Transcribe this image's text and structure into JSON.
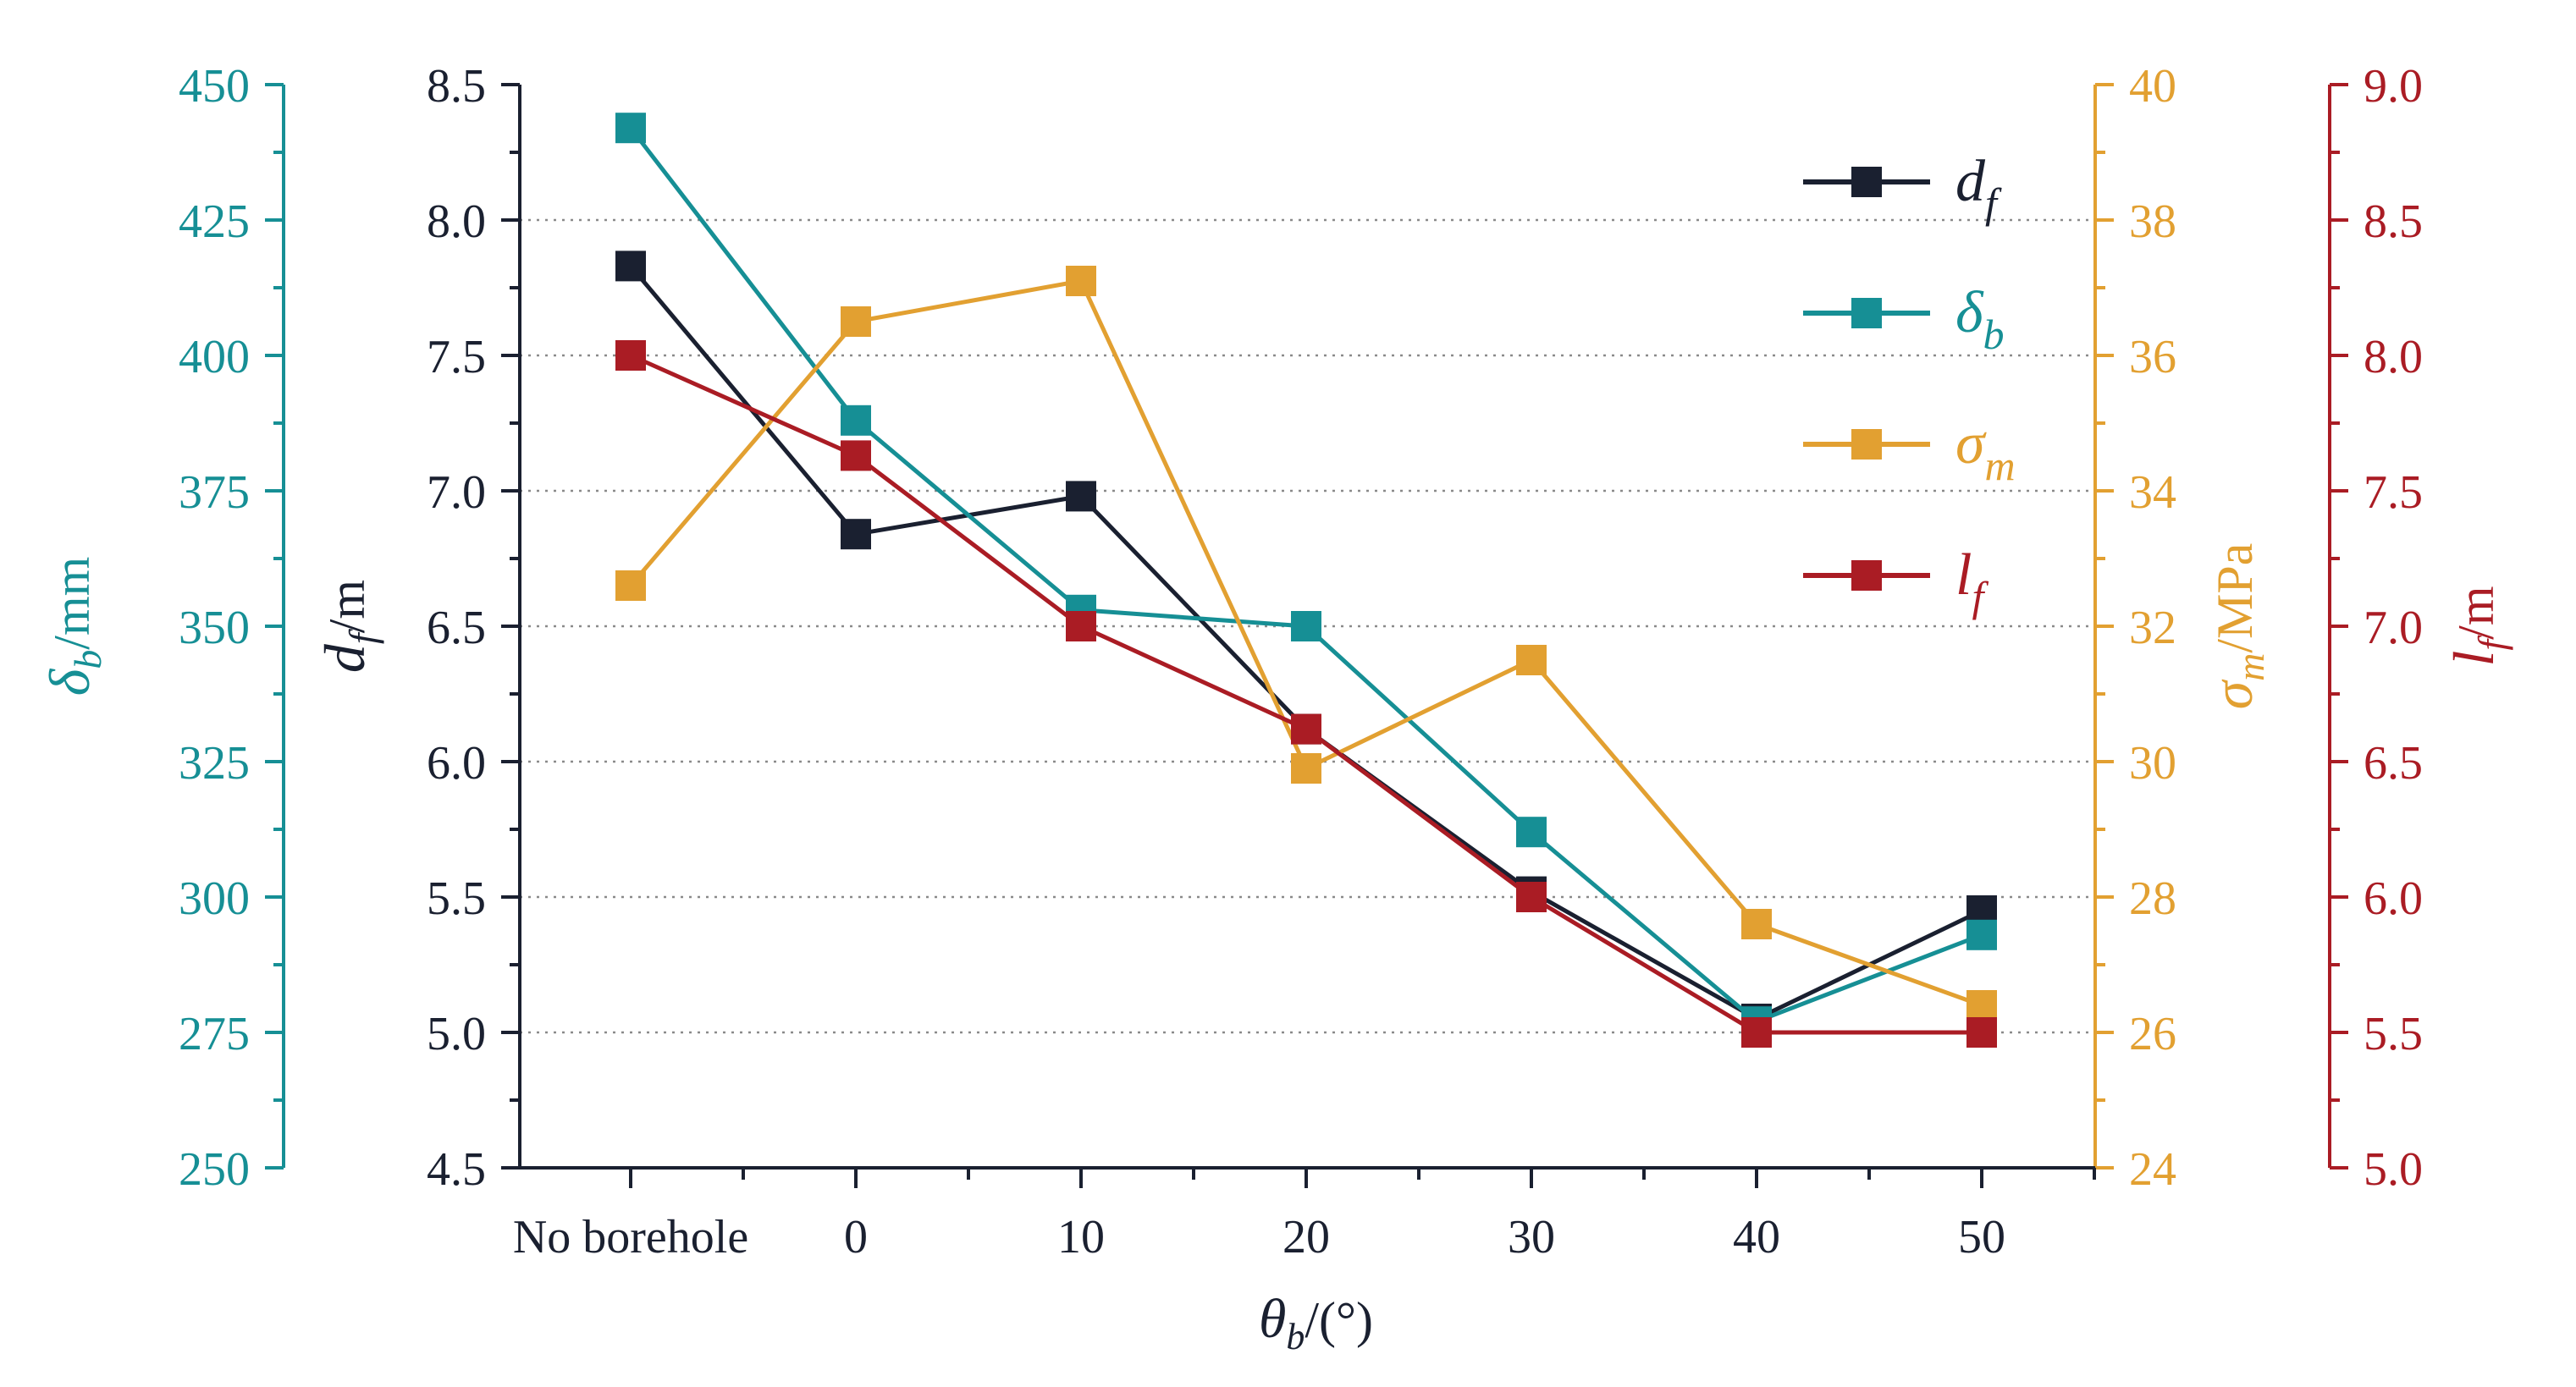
{
  "chart_data": {
    "type": "line",
    "categories": [
      "No borehole",
      "0",
      "10",
      "20",
      "30",
      "40",
      "50"
    ],
    "xlabel": {
      "symbol": "θ",
      "sub": "b",
      "unit": "/(°)"
    },
    "axes": [
      {
        "id": "df",
        "color": "#1a2030",
        "range": [
          4.5,
          8.5
        ],
        "ticks": [
          "4.5",
          "5.0",
          "5.5",
          "6.0",
          "6.5",
          "7.0",
          "7.5",
          "8.0",
          "8.5"
        ],
        "label": {
          "symbol": "d",
          "sub": "f",
          "unit": "/m"
        }
      },
      {
        "id": "db",
        "color": "#168f95",
        "range": [
          250,
          450
        ],
        "ticks": [
          "250",
          "275",
          "300",
          "325",
          "350",
          "375",
          "400",
          "425",
          "450"
        ],
        "label": {
          "symbol": "δ",
          "sub": "b",
          "unit": "/mm"
        }
      },
      {
        "id": "sm",
        "color": "#e2a031",
        "range": [
          24,
          40
        ],
        "ticks": [
          "24",
          "26",
          "28",
          "30",
          "32",
          "34",
          "36",
          "38",
          "40"
        ],
        "label": {
          "symbol": "σ",
          "sub": "m",
          "unit": "/MPa"
        }
      },
      {
        "id": "lf",
        "color": "#aa1c24",
        "range": [
          5.0,
          9.0
        ],
        "ticks": [
          "5.0",
          "5.5",
          "6.0",
          "6.5",
          "7.0",
          "7.5",
          "8.0",
          "8.5",
          "9.0"
        ],
        "label": {
          "symbol": "l",
          "sub": "f",
          "unit": "/m"
        }
      }
    ],
    "series": [
      {
        "name": "d_f",
        "symbol": "d",
        "sub": "f",
        "axis": "df",
        "color": "#1a2030",
        "values": [
          7.83,
          6.84,
          6.98,
          6.12,
          5.52,
          5.05,
          5.45
        ]
      },
      {
        "name": "δ_b",
        "symbol": "δ",
        "sub": "b",
        "axis": "db",
        "color": "#168f95",
        "values": [
          442,
          388,
          353,
          350,
          312,
          277,
          293
        ]
      },
      {
        "name": "σ_m",
        "symbol": "σ",
        "sub": "m",
        "axis": "sm",
        "color": "#e2a031",
        "values": [
          32.6,
          36.5,
          37.1,
          29.9,
          31.5,
          27.6,
          26.4
        ]
      },
      {
        "name": "l_f",
        "symbol": "l",
        "sub": "f",
        "axis": "lf",
        "color": "#aa1c24",
        "values": [
          8.0,
          7.63,
          7.0,
          6.62,
          6.0,
          5.5,
          5.5
        ]
      }
    ],
    "grid": "horizontal-dotted",
    "legend": "top-right"
  }
}
